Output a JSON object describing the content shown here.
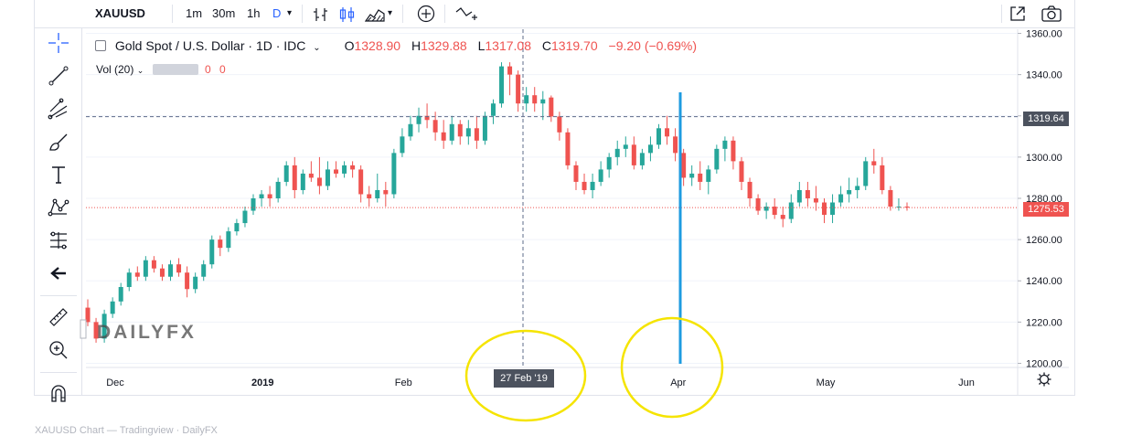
{
  "toolbar": {
    "symbol": "XAUUSD",
    "intervals": [
      "1m",
      "30m",
      "1h",
      "D"
    ],
    "active_interval": "D"
  },
  "legend": {
    "title": "Gold Spot / U.S. Dollar · 1D · IDC",
    "open_label": "O",
    "open": "1328.90",
    "high_label": "H",
    "high": "1329.88",
    "low_label": "L",
    "low": "1317.08",
    "close_label": "C",
    "close": "1319.70",
    "change": "−9.20 (−0.69%)",
    "volume_label": "Vol (20)",
    "volume_values": [
      "0",
      "0"
    ]
  },
  "price_tags": {
    "crosshair": "1319.64",
    "last": "1275.53"
  },
  "crosshair_date": "27 Feb '19",
  "watermark": "DAILYFX",
  "bottom_caption": "XAUUSD Chart — Tradingview · DailyFX",
  "colors": {
    "up": "#26a69a",
    "down": "#ef5350",
    "accent": "#2962ff",
    "annotation": "#f5e400",
    "vline": "#1e9be0"
  },
  "chart_data": {
    "type": "candlestick",
    "y_ticks": [
      "1360.00",
      "1340.00",
      "1320.00",
      "1300.00",
      "1280.00",
      "1260.00",
      "1240.00",
      "1220.00",
      "1200.00"
    ],
    "x_ticks": [
      "Dec",
      "2019",
      "Feb",
      "Apr",
      "May",
      "Jun"
    ],
    "ylim": [
      1198,
      1362
    ],
    "candles": [
      [
        1227,
        1231,
        1218,
        1220
      ],
      [
        1220,
        1222,
        1210,
        1212
      ],
      [
        1212,
        1226,
        1210,
        1224
      ],
      [
        1224,
        1232,
        1222,
        1230
      ],
      [
        1230,
        1239,
        1228,
        1237
      ],
      [
        1237,
        1246,
        1235,
        1244
      ],
      [
        1244,
        1247,
        1240,
        1242
      ],
      [
        1242,
        1252,
        1240,
        1250
      ],
      [
        1250,
        1252,
        1244,
        1246
      ],
      [
        1246,
        1248,
        1240,
        1242
      ],
      [
        1242,
        1250,
        1240,
        1248
      ],
      [
        1248,
        1251,
        1242,
        1244
      ],
      [
        1244,
        1247,
        1232,
        1236
      ],
      [
        1236,
        1244,
        1234,
        1242
      ],
      [
        1242,
        1250,
        1240,
        1248
      ],
      [
        1248,
        1262,
        1246,
        1260
      ],
      [
        1260,
        1262,
        1252,
        1256
      ],
      [
        1256,
        1266,
        1254,
        1264
      ],
      [
        1264,
        1270,
        1262,
        1268
      ],
      [
        1268,
        1276,
        1266,
        1274
      ],
      [
        1274,
        1282,
        1272,
        1280
      ],
      [
        1280,
        1284,
        1276,
        1282
      ],
      [
        1282,
        1286,
        1276,
        1280
      ],
      [
        1280,
        1290,
        1278,
        1288
      ],
      [
        1288,
        1298,
        1286,
        1296
      ],
      [
        1296,
        1300,
        1280,
        1284
      ],
      [
        1284,
        1294,
        1282,
        1292
      ],
      [
        1292,
        1298,
        1288,
        1290
      ],
      [
        1290,
        1300,
        1282,
        1286
      ],
      [
        1286,
        1298,
        1284,
        1294
      ],
      [
        1294,
        1298,
        1290,
        1292
      ],
      [
        1292,
        1298,
        1290,
        1296
      ],
      [
        1296,
        1298,
        1290,
        1294
      ],
      [
        1294,
        1296,
        1278,
        1282
      ],
      [
        1282,
        1286,
        1276,
        1280
      ],
      [
        1280,
        1292,
        1278,
        1284
      ],
      [
        1284,
        1288,
        1276,
        1282
      ],
      [
        1282,
        1304,
        1280,
        1302
      ],
      [
        1302,
        1314,
        1300,
        1310
      ],
      [
        1310,
        1320,
        1308,
        1316
      ],
      [
        1316,
        1324,
        1312,
        1320
      ],
      [
        1320,
        1326,
        1314,
        1318
      ],
      [
        1318,
        1322,
        1308,
        1312
      ],
      [
        1312,
        1318,
        1304,
        1308
      ],
      [
        1308,
        1320,
        1306,
        1316
      ],
      [
        1316,
        1318,
        1306,
        1310
      ],
      [
        1310,
        1318,
        1306,
        1314
      ],
      [
        1314,
        1320,
        1304,
        1308
      ],
      [
        1308,
        1322,
        1306,
        1320
      ],
      [
        1320,
        1328,
        1316,
        1326
      ],
      [
        1326,
        1346,
        1324,
        1344
      ],
      [
        1344,
        1346,
        1330,
        1340
      ],
      [
        1340,
        1342,
        1322,
        1326
      ],
      [
        1326,
        1334,
        1322,
        1330
      ],
      [
        1330,
        1334,
        1322,
        1326
      ],
      [
        1326,
        1332,
        1318,
        1328
      ],
      [
        1328.9,
        1329.88,
        1317.08,
        1319.7
      ],
      [
        1319.7,
        1322,
        1308,
        1312
      ],
      [
        1312,
        1314,
        1294,
        1296
      ],
      [
        1296,
        1298,
        1284,
        1288
      ],
      [
        1288,
        1292,
        1282,
        1284
      ],
      [
        1284,
        1292,
        1280,
        1288
      ],
      [
        1288,
        1298,
        1286,
        1294
      ],
      [
        1294,
        1302,
        1290,
        1300
      ],
      [
        1300,
        1308,
        1296,
        1304
      ],
      [
        1304,
        1310,
        1300,
        1306
      ],
      [
        1306,
        1310,
        1294,
        1296
      ],
      [
        1296,
        1304,
        1294,
        1302
      ],
      [
        1302,
        1310,
        1298,
        1306
      ],
      [
        1306,
        1316,
        1304,
        1314
      ],
      [
        1314,
        1320,
        1306,
        1310
      ],
      [
        1310,
        1314,
        1298,
        1302
      ],
      [
        1302,
        1304,
        1286,
        1290
      ],
      [
        1290,
        1296,
        1286,
        1292
      ],
      [
        1292,
        1298,
        1284,
        1288
      ],
      [
        1288,
        1296,
        1282,
        1294
      ],
      [
        1294,
        1306,
        1292,
        1304
      ],
      [
        1304,
        1310,
        1298,
        1308
      ],
      [
        1308,
        1310,
        1294,
        1298
      ],
      [
        1298,
        1300,
        1284,
        1288
      ],
      [
        1288,
        1290,
        1276,
        1280
      ],
      [
        1280,
        1282,
        1272,
        1274
      ],
      [
        1274,
        1278,
        1270,
        1276
      ],
      [
        1276,
        1280,
        1270,
        1272
      ],
      [
        1272,
        1276,
        1266,
        1270
      ],
      [
        1270,
        1282,
        1268,
        1278
      ],
      [
        1278,
        1288,
        1276,
        1284
      ],
      [
        1284,
        1288,
        1276,
        1280
      ],
      [
        1280,
        1286,
        1274,
        1278
      ],
      [
        1278,
        1280,
        1268,
        1272
      ],
      [
        1272,
        1282,
        1268,
        1278
      ],
      [
        1278,
        1286,
        1276,
        1282
      ],
      [
        1282,
        1290,
        1278,
        1284
      ],
      [
        1284,
        1290,
        1280,
        1286
      ],
      [
        1286,
        1300,
        1284,
        1298
      ],
      [
        1298,
        1304,
        1292,
        1296
      ],
      [
        1296,
        1300,
        1282,
        1284
      ],
      [
        1284,
        1286,
        1274,
        1276
      ],
      [
        1276,
        1280,
        1274,
        1276
      ],
      [
        1276,
        1278,
        1274,
        1275.53
      ]
    ],
    "horizontal_lines": [
      {
        "price": 1319.64,
        "style": "dashed",
        "color": "#5d6b8a"
      },
      {
        "price": 1275.53,
        "style": "dotted",
        "color": "#ef5350"
      }
    ],
    "vertical_line_date": "Apr"
  }
}
